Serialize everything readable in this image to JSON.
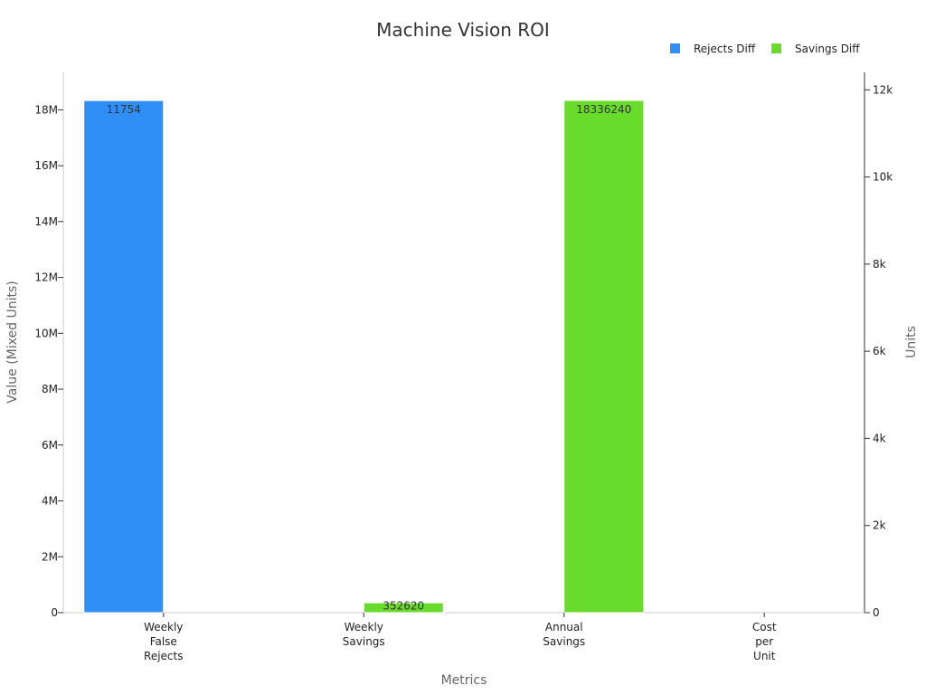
{
  "chart_data": {
    "type": "bar",
    "title": "Machine Vision ROI",
    "xlabel": "Metrics",
    "ylabel": "Value (Mixed Units)",
    "y2label": "Units",
    "categories": [
      [
        "Weekly",
        "False",
        "Rejects"
      ],
      [
        "Weekly",
        "Savings"
      ],
      [
        "Annual",
        "Savings"
      ],
      [
        "Cost",
        "per",
        "Unit"
      ]
    ],
    "ylim": [
      0,
      19340000
    ],
    "y2lim": [
      0,
      12400
    ],
    "yticks": [
      0,
      2000000,
      4000000,
      6000000,
      8000000,
      10000000,
      12000000,
      14000000,
      16000000,
      18000000
    ],
    "ytick_labels": [
      "0",
      "2M",
      "4M",
      "6M",
      "8M",
      "10M",
      "12M",
      "14M",
      "16M",
      "18M"
    ],
    "y2ticks": [
      0,
      2000,
      4000,
      6000,
      8000,
      10000,
      12000
    ],
    "y2tick_labels": [
      "0",
      "2k",
      "4k",
      "6k",
      "8k",
      "10k",
      "12k"
    ],
    "legend_position": "top-right",
    "series": [
      {
        "name": "Rejects Diff",
        "color": "#2f8ff7",
        "axis": "right",
        "values": [
          11754,
          null,
          null,
          null
        ],
        "labels": [
          "11754",
          "",
          "",
          ""
        ]
      },
      {
        "name": "Savings Diff",
        "color": "#69db2a",
        "axis": "left",
        "values": [
          null,
          352620,
          18336240,
          null
        ],
        "labels": [
          "",
          "352620",
          "18336240",
          ""
        ]
      }
    ]
  }
}
